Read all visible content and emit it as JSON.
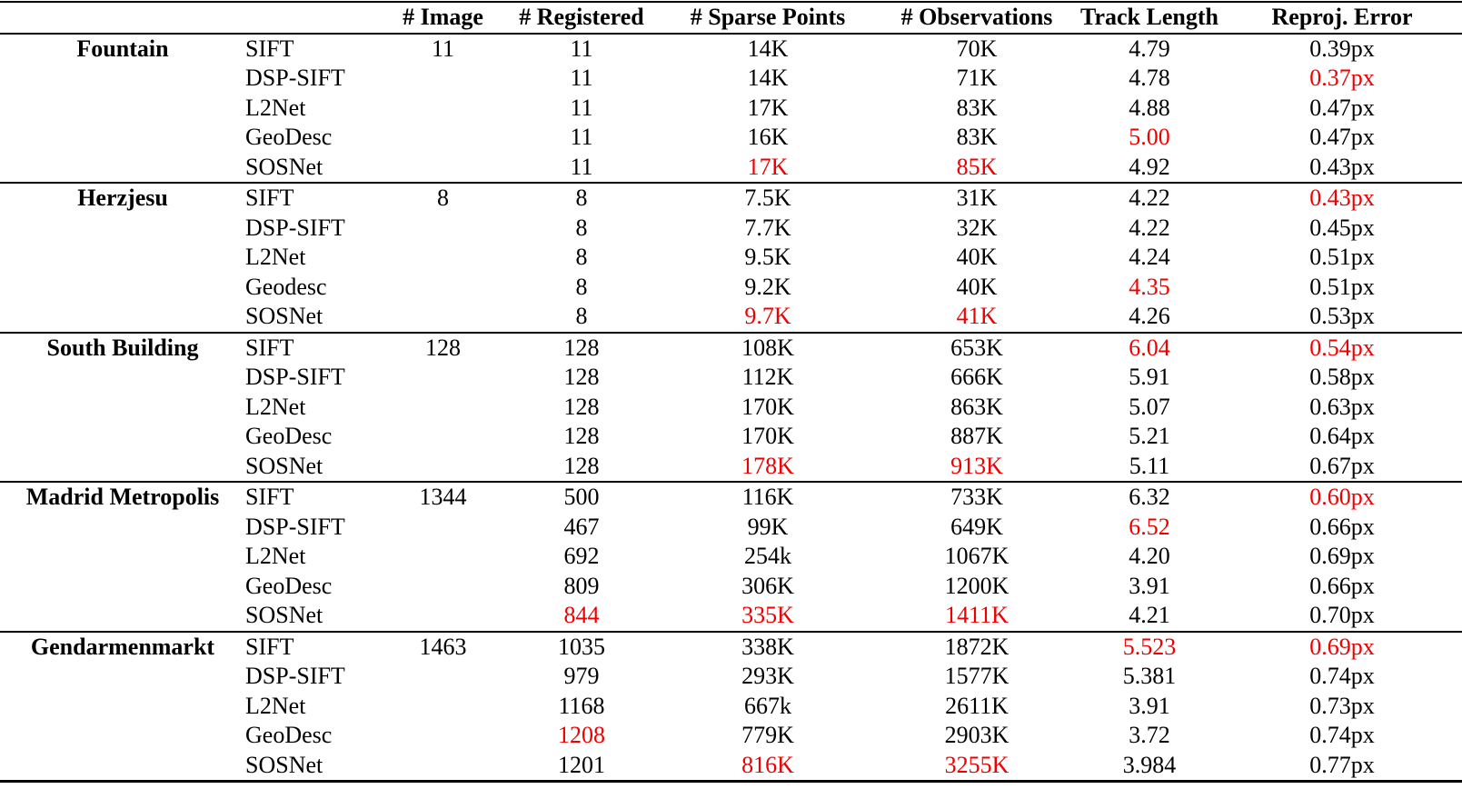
{
  "table": {
    "headers": [
      "",
      "",
      "# Image",
      "# Registered",
      "# Sparse Points",
      "# Observations",
      "Track Length",
      "Reproj. Error"
    ],
    "highlight_color": "#ee0000",
    "text_color": "#000000",
    "groups": [
      {
        "dataset": "Fountain",
        "rows": [
          {
            "method": "SIFT",
            "num_images": "11",
            "registered": "11",
            "sparse_points": "14K",
            "observations": "70K",
            "track_length": "4.79",
            "reproj_error": "0.39px",
            "red": []
          },
          {
            "method": "DSP-SIFT",
            "num_images": "",
            "registered": "11",
            "sparse_points": "14K",
            "observations": "71K",
            "track_length": "4.78",
            "reproj_error": "0.37px",
            "red": [
              "reproj_error"
            ]
          },
          {
            "method": "L2Net",
            "num_images": "",
            "registered": "11",
            "sparse_points": "17K",
            "observations": "83K",
            "track_length": "4.88",
            "reproj_error": "0.47px",
            "red": []
          },
          {
            "method": "GeoDesc",
            "num_images": "",
            "registered": "11",
            "sparse_points": "16K",
            "observations": "83K",
            "track_length": "5.00",
            "reproj_error": "0.47px",
            "red": [
              "track_length"
            ]
          },
          {
            "method": "SOSNet",
            "num_images": "",
            "registered": "11",
            "sparse_points": "17K",
            "observations": "85K",
            "track_length": "4.92",
            "reproj_error": "0.43px",
            "red": [
              "sparse_points",
              "observations"
            ]
          }
        ]
      },
      {
        "dataset": "Herzjesu",
        "rows": [
          {
            "method": "SIFT",
            "num_images": "8",
            "registered": "8",
            "sparse_points": "7.5K",
            "observations": "31K",
            "track_length": "4.22",
            "reproj_error": "0.43px",
            "red": [
              "reproj_error"
            ]
          },
          {
            "method": "DSP-SIFT",
            "num_images": "",
            "registered": "8",
            "sparse_points": "7.7K",
            "observations": "32K",
            "track_length": "4.22",
            "reproj_error": "0.45px",
            "red": []
          },
          {
            "method": "L2Net",
            "num_images": "",
            "registered": "8",
            "sparse_points": "9.5K",
            "observations": "40K",
            "track_length": "4.24",
            "reproj_error": "0.51px",
            "red": []
          },
          {
            "method": "Geodesc",
            "num_images": "",
            "registered": "8",
            "sparse_points": "9.2K",
            "observations": "40K",
            "track_length": "4.35",
            "reproj_error": "0.51px",
            "red": [
              "track_length"
            ]
          },
          {
            "method": "SOSNet",
            "num_images": "",
            "registered": "8",
            "sparse_points": "9.7K",
            "observations": "41K",
            "track_length": "4.26",
            "reproj_error": "0.53px",
            "red": [
              "sparse_points",
              "observations"
            ]
          }
        ]
      },
      {
        "dataset": "South Building",
        "rows": [
          {
            "method": "SIFT",
            "num_images": "128",
            "registered": "128",
            "sparse_points": "108K",
            "observations": "653K",
            "track_length": "6.04",
            "reproj_error": "0.54px",
            "red": [
              "track_length",
              "reproj_error"
            ]
          },
          {
            "method": "DSP-SIFT",
            "num_images": "",
            "registered": "128",
            "sparse_points": "112K",
            "observations": "666K",
            "track_length": "5.91",
            "reproj_error": "0.58px",
            "red": []
          },
          {
            "method": "L2Net",
            "num_images": "",
            "registered": "128",
            "sparse_points": "170K",
            "observations": "863K",
            "track_length": "5.07",
            "reproj_error": "0.63px",
            "red": []
          },
          {
            "method": "GeoDesc",
            "num_images": "",
            "registered": "128",
            "sparse_points": "170K",
            "observations": "887K",
            "track_length": "5.21",
            "reproj_error": "0.64px",
            "red": []
          },
          {
            "method": "SOSNet",
            "num_images": "",
            "registered": "128",
            "sparse_points": "178K",
            "observations": "913K",
            "track_length": "5.11",
            "reproj_error": "0.67px",
            "red": [
              "sparse_points",
              "observations"
            ]
          }
        ]
      },
      {
        "dataset": "Madrid Metropolis",
        "rows": [
          {
            "method": "SIFT",
            "num_images": "1344",
            "registered": "500",
            "sparse_points": "116K",
            "observations": "733K",
            "track_length": "6.32",
            "reproj_error": "0.60px",
            "red": [
              "reproj_error"
            ]
          },
          {
            "method": "DSP-SIFT",
            "num_images": "",
            "registered": "467",
            "sparse_points": "99K",
            "observations": "649K",
            "track_length": "6.52",
            "reproj_error": "0.66px",
            "red": [
              "track_length"
            ]
          },
          {
            "method": "L2Net",
            "num_images": "",
            "registered": "692",
            "sparse_points": "254k",
            "observations": "1067K",
            "track_length": "4.20",
            "reproj_error": "0.69px",
            "red": []
          },
          {
            "method": "GeoDesc",
            "num_images": "",
            "registered": "809",
            "sparse_points": "306K",
            "observations": "1200K",
            "track_length": "3.91",
            "reproj_error": "0.66px",
            "red": []
          },
          {
            "method": "SOSNet",
            "num_images": "",
            "registered": "844",
            "sparse_points": "335K",
            "observations": "1411K",
            "track_length": "4.21",
            "reproj_error": "0.70px",
            "red": [
              "registered",
              "sparse_points",
              "observations"
            ]
          }
        ]
      },
      {
        "dataset": "Gendarmenmarkt",
        "rows": [
          {
            "method": "SIFT",
            "num_images": "1463",
            "registered": "1035",
            "sparse_points": "338K",
            "observations": "1872K",
            "track_length": "5.523",
            "reproj_error": "0.69px",
            "red": [
              "track_length",
              "reproj_error"
            ]
          },
          {
            "method": "DSP-SIFT",
            "num_images": "",
            "registered": "979",
            "sparse_points": "293K",
            "observations": "1577K",
            "track_length": "5.381",
            "reproj_error": "0.74px",
            "red": []
          },
          {
            "method": "L2Net",
            "num_images": "",
            "registered": "1168",
            "sparse_points": "667k",
            "observations": "2611K",
            "track_length": "3.91",
            "reproj_error": "0.73px",
            "red": []
          },
          {
            "method": "GeoDesc",
            "num_images": "",
            "registered": "1208",
            "sparse_points": "779K",
            "observations": "2903K",
            "track_length": "3.72",
            "reproj_error": "0.74px",
            "red": [
              "registered"
            ]
          },
          {
            "method": "SOSNet",
            "num_images": "",
            "registered": "1201",
            "sparse_points": "816K",
            "observations": "3255K",
            "track_length": "3.984",
            "reproj_error": "0.77px",
            "red": [
              "sparse_points",
              "observations"
            ]
          }
        ]
      }
    ]
  }
}
